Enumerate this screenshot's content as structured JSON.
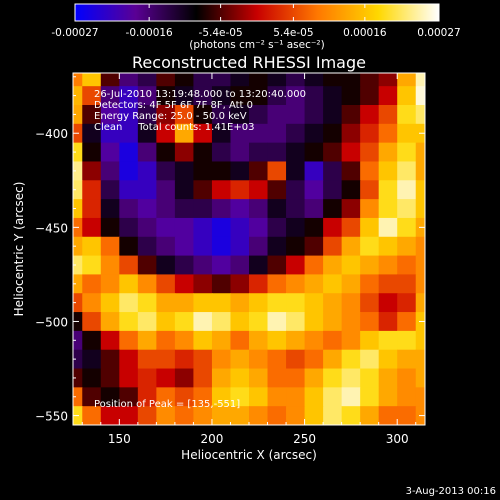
{
  "colorbar": {
    "tick_labels": [
      "-0.00027",
      "-0.00016",
      "-5.4e-05",
      "5.4e-05",
      "0.00016",
      "0.00027"
    ],
    "tick_values": [
      -0.00027,
      -0.00016,
      -5.4e-05,
      5.4e-05,
      0.00016,
      0.00027
    ],
    "range": [
      -0.00027,
      0.00027
    ],
    "unit_label": "(photons cm⁻² s⁻¹ asec⁻²)",
    "colormap": [
      "#0000ff",
      "#5a0094",
      "#000000",
      "#c80000",
      "#ff7800",
      "#ffd800",
      "#ffffff"
    ]
  },
  "image": {
    "title": "Reconstructed RHESSI Image",
    "info_lines": [
      "26-Jul-2010 13:19:48.000 to 13:20:40.000",
      "Detectors: 4F 5F 6F 7F 8F, Att 0",
      "Energy Range: 25.0 - 50.0 keV",
      "Clean     Total counts: 1.41E+03"
    ],
    "peak_note": "Position of Peak = [135,-551]",
    "date_stamp": "3-Aug-2013 00:16"
  },
  "chart_data": {
    "type": "heatmap",
    "title": "Reconstructed RHESSI Image",
    "xlabel": "Heliocentric X (arcsec)",
    "ylabel": "Heliocentric Y (arcsec)",
    "xlim": [
      125,
      315
    ],
    "ylim": [
      -555,
      -368
    ],
    "x_ticks": [
      150,
      200,
      250,
      300
    ],
    "x_tick_labels": [
      "150",
      "200",
      "250",
      "300"
    ],
    "y_ticks": [
      -400,
      -450,
      -500,
      -550
    ],
    "y_tick_labels": [
      "-400",
      "-450",
      "-500",
      "-550"
    ],
    "grid": false,
    "colorbar_unit": "photons cm^-2 s^-1 asec^-2",
    "value_range": [
      -0.00027,
      0.00027
    ],
    "peak_position": [
      135,
      -551
    ],
    "grid_x": [
      125,
      135,
      145,
      155,
      165,
      175,
      185,
      195,
      205,
      215,
      225,
      235,
      245,
      255,
      265,
      275,
      285,
      295,
      305,
      315
    ],
    "grid_y": [
      -370,
      -380,
      -390,
      -400,
      -410,
      -420,
      -430,
      -440,
      -450,
      -460,
      -470,
      -480,
      -490,
      -500,
      -510,
      -520,
      -530,
      -540,
      -550
    ],
    "z": [
      [
        0.35,
        0.6,
        -0.2,
        -0.6,
        -0.5,
        -0.2,
        -0.3,
        -0.5,
        -0.5,
        -0.4,
        -0.3,
        -0.4,
        -0.5,
        -0.4,
        -0.3,
        -0.3,
        -0.2,
        -0.1,
        0.5,
        0.9
      ],
      [
        0.55,
        0.2,
        -0.6,
        -0.8,
        -0.6,
        -0.3,
        -0.4,
        -0.5,
        -0.4,
        -0.3,
        -0.3,
        -0.5,
        -0.6,
        -0.5,
        -0.4,
        -0.3,
        -0.2,
        0.0,
        0.6,
        0.95
      ],
      [
        0.5,
        -0.2,
        -0.7,
        -0.8,
        -0.5,
        -0.1,
        0.2,
        -0.3,
        -0.5,
        -0.4,
        -0.5,
        -0.6,
        -0.6,
        -0.5,
        -0.4,
        -0.2,
        0.0,
        0.2,
        0.7,
        0.8
      ],
      [
        0.2,
        -0.4,
        -0.8,
        -0.8,
        -0.4,
        0.0,
        0.5,
        0.0,
        -0.4,
        -0.6,
        -0.6,
        -0.6,
        -0.5,
        -0.4,
        -0.3,
        -0.1,
        0.1,
        0.3,
        0.6,
        0.6
      ],
      [
        0.7,
        -0.3,
        -0.7,
        -0.9,
        -0.6,
        -0.3,
        -0.1,
        -0.3,
        -0.5,
        -0.6,
        -0.5,
        -0.5,
        -0.4,
        -0.3,
        -0.2,
        0.0,
        0.2,
        0.5,
        0.7,
        0.5
      ],
      [
        0.85,
        -0.1,
        -0.6,
        -0.9,
        -0.8,
        -0.5,
        -0.4,
        -0.3,
        -0.3,
        -0.4,
        -0.2,
        0.2,
        -0.4,
        -0.8,
        -0.5,
        -0.2,
        0.3,
        0.6,
        0.8,
        0.5
      ],
      [
        0.8,
        0.1,
        -0.5,
        -0.8,
        -0.8,
        -0.6,
        -0.4,
        -0.2,
        0.0,
        0.1,
        0.0,
        -0.2,
        -0.5,
        -0.7,
        -0.5,
        -0.3,
        0.2,
        0.7,
        0.9,
        0.6
      ],
      [
        0.6,
        0.1,
        -0.4,
        -0.6,
        -0.7,
        -0.6,
        -0.5,
        -0.5,
        -0.6,
        -0.7,
        -0.6,
        -0.4,
        -0.5,
        -0.6,
        -0.3,
        -0.1,
        0.4,
        0.7,
        0.8,
        0.6
      ],
      [
        0.3,
        0.0,
        -0.3,
        -0.5,
        -0.6,
        -0.7,
        -0.7,
        -0.8,
        -0.9,
        -0.8,
        -0.7,
        -0.5,
        -0.4,
        -0.3,
        0.0,
        0.2,
        0.6,
        0.9,
        0.7,
        0.5
      ],
      [
        0.5,
        0.6,
        0.3,
        -0.3,
        -0.5,
        -0.6,
        -0.7,
        -0.8,
        -0.9,
        -0.8,
        -0.6,
        -0.4,
        -0.3,
        -0.2,
        0.2,
        0.5,
        0.7,
        0.6,
        0.5,
        0.4
      ],
      [
        0.8,
        0.7,
        0.4,
        0.2,
        -0.2,
        -0.4,
        -0.5,
        -0.6,
        -0.7,
        -0.6,
        -0.4,
        -0.2,
        0.0,
        0.3,
        0.5,
        0.6,
        0.5,
        0.4,
        0.3,
        0.4
      ],
      [
        0.5,
        0.3,
        0.4,
        0.6,
        0.4,
        0.2,
        0.0,
        -0.1,
        -0.2,
        -0.1,
        0.1,
        0.3,
        0.4,
        0.5,
        0.6,
        0.5,
        0.3,
        0.2,
        0.2,
        0.4
      ],
      [
        0.2,
        0.4,
        0.6,
        0.8,
        0.7,
        0.5,
        0.5,
        0.6,
        0.6,
        0.5,
        0.6,
        0.7,
        0.7,
        0.6,
        0.5,
        0.4,
        0.2,
        0.0,
        0.1,
        0.5
      ],
      [
        -0.3,
        0.2,
        0.5,
        0.7,
        0.8,
        0.6,
        0.7,
        0.9,
        0.8,
        0.6,
        0.7,
        0.9,
        0.8,
        0.6,
        0.5,
        0.4,
        0.3,
        0.1,
        0.3,
        0.6
      ],
      [
        -0.6,
        -0.3,
        0.0,
        0.3,
        0.5,
        0.3,
        0.4,
        0.6,
        0.5,
        0.3,
        0.5,
        0.6,
        0.5,
        0.4,
        0.3,
        0.4,
        0.6,
        0.7,
        0.7,
        0.6
      ],
      [
        -0.5,
        -0.4,
        -0.2,
        0.0,
        0.2,
        0.2,
        0.1,
        0.2,
        0.4,
        0.5,
        0.4,
        0.3,
        0.2,
        0.3,
        0.5,
        0.7,
        0.8,
        0.6,
        0.5,
        0.5
      ],
      [
        -0.2,
        -0.3,
        -0.2,
        0.0,
        0.1,
        0.0,
        -0.1,
        0.2,
        0.5,
        0.6,
        0.5,
        0.3,
        0.3,
        0.5,
        0.7,
        0.8,
        0.7,
        0.5,
        0.4,
        0.5
      ],
      [
        0.3,
        -0.2,
        -0.3,
        -0.2,
        0.1,
        0.3,
        0.2,
        0.3,
        0.6,
        0.7,
        0.6,
        0.4,
        0.4,
        0.6,
        0.8,
        0.9,
        0.7,
        0.5,
        0.4,
        0.4
      ],
      [
        0.7,
        0.3,
        0.0,
        0.0,
        0.2,
        0.4,
        0.3,
        0.4,
        0.5,
        0.5,
        0.4,
        0.3,
        0.4,
        0.6,
        0.8,
        0.7,
        0.5,
        0.3,
        0.3,
        0.4
      ]
    ]
  }
}
